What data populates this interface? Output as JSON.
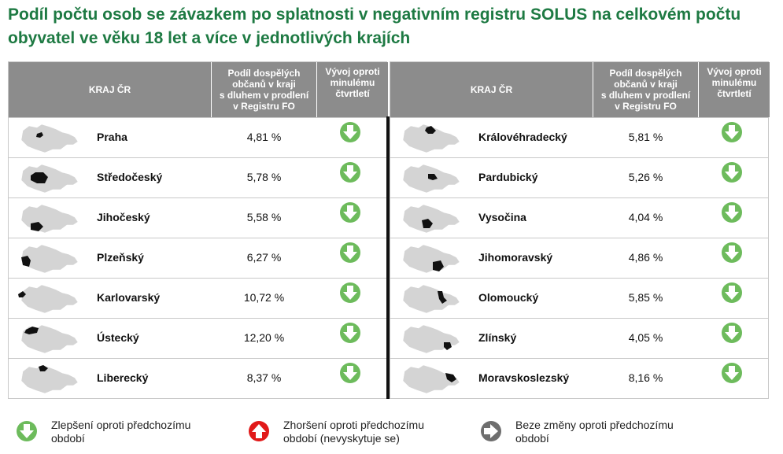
{
  "title": "Podíl počtu osob se závazkem po splatnosti v negativním registru SOLUS na celkovém počtu obyvatel ve věku 18 let a více v jednotlivých krajích",
  "headers": {
    "region": "KRAJ ČR",
    "share": "Podíl dospělých\nobčanů v kraji\ns dluhem v prodlení\nv Registru FO",
    "trend": "Vývoj oproti\nminulému\nčtvrtletí"
  },
  "colors": {
    "title": "#1e7a43",
    "improve": "#6dbb5c",
    "worse": "#e11919",
    "same": "#6e6e6e",
    "map_fill": "#d4d4d4",
    "map_highlight": "#111111"
  },
  "chart_data": {
    "type": "table",
    "title": "Podíl počtu osob se závazkem po splatnosti v negativním registru SOLUS na celkovém počtu obyvatel ve věku 18 let a více v jednotlivých krajích",
    "columns": [
      "KRAJ ČR",
      "Podíl dospělých občanů v kraji s dluhem v prodlení v Registru FO",
      "Vývoj oproti minulému čtvrtletí"
    ],
    "left": [
      {
        "region": "Praha",
        "value_text": "4,81 %",
        "value": 4.81,
        "trend": "improve",
        "trend_icon": "green-down-arrow-icon"
      },
      {
        "region": "Středočeský",
        "value_text": "5,78 %",
        "value": 5.78,
        "trend": "improve",
        "trend_icon": "green-down-arrow-icon"
      },
      {
        "region": "Jihočeský",
        "value_text": "5,58 %",
        "value": 5.58,
        "trend": "improve",
        "trend_icon": "green-down-arrow-icon"
      },
      {
        "region": "Plzeňský",
        "value_text": "6,27 %",
        "value": 6.27,
        "trend": "improve",
        "trend_icon": "green-down-arrow-icon"
      },
      {
        "region": "Karlovarský",
        "value_text": "10,72 %",
        "value": 10.72,
        "trend": "improve",
        "trend_icon": "green-down-arrow-icon"
      },
      {
        "region": "Ústecký",
        "value_text": "12,20 %",
        "value": 12.2,
        "trend": "improve",
        "trend_icon": "green-down-arrow-icon"
      },
      {
        "region": "Liberecký",
        "value_text": "8,37 %",
        "value": 8.37,
        "trend": "improve",
        "trend_icon": "green-down-arrow-icon"
      }
    ],
    "right": [
      {
        "region": "Královéhradecký",
        "value_text": "5,81 %",
        "value": 5.81,
        "trend": "improve",
        "trend_icon": "green-down-arrow-icon"
      },
      {
        "region": "Pardubický",
        "value_text": "5,26 %",
        "value": 5.26,
        "trend": "improve",
        "trend_icon": "green-down-arrow-icon"
      },
      {
        "region": "Vysočina",
        "value_text": "4,04 %",
        "value": 4.04,
        "trend": "improve",
        "trend_icon": "green-down-arrow-icon"
      },
      {
        "region": "Jihomoravský",
        "value_text": "4,86 %",
        "value": 4.86,
        "trend": "improve",
        "trend_icon": "green-down-arrow-icon"
      },
      {
        "region": "Olomoucký",
        "value_text": "5,85 %",
        "value": 5.85,
        "trend": "improve",
        "trend_icon": "green-down-arrow-icon"
      },
      {
        "region": "Zlínský",
        "value_text": "4,05 %",
        "value": 4.05,
        "trend": "improve",
        "trend_icon": "green-down-arrow-icon"
      },
      {
        "region": "Moravskoslezský",
        "value_text": "8,16 %",
        "value": 8.16,
        "trend": "improve",
        "trend_icon": "green-down-arrow-icon"
      }
    ]
  },
  "legend": [
    {
      "icon": "green-down-arrow-icon",
      "kind": "improve",
      "text": "Zlepšení oproti předchozímu\nobdobí"
    },
    {
      "icon": "red-up-arrow-icon",
      "kind": "worse",
      "text": "Zhoršení oproti předchozímu\nobdobí (nevyskytuje se)"
    },
    {
      "icon": "gray-right-arrow-icon",
      "kind": "same",
      "text": "Beze změny oproti předchozímu\nobdobí"
    }
  ]
}
